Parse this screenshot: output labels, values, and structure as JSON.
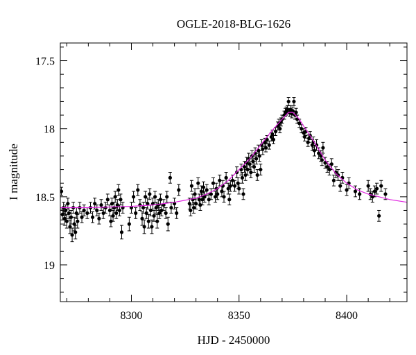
{
  "chart_data": {
    "type": "scatter",
    "title": "OGLE-2018-BLG-1626",
    "xlabel": "HJD - 2450000",
    "ylabel": "I magnitude",
    "xlim": [
      8267,
      8428
    ],
    "ylim": [
      19.27,
      17.37
    ],
    "y_inverted": true,
    "grid": false,
    "x_ticks": [
      {
        "value": 8300,
        "label": "8300"
      },
      {
        "value": 8350,
        "label": "8350"
      },
      {
        "value": 8400,
        "label": "8400"
      }
    ],
    "y_ticks": [
      {
        "value": 17.5,
        "label": "17.5"
      },
      {
        "value": 18,
        "label": "18"
      },
      {
        "value": 18.5,
        "label": "18.5"
      },
      {
        "value": 19,
        "label": "19"
      }
    ],
    "series": [
      {
        "kind": "points_with_errorbars",
        "color": "#000000",
        "points": [
          [
            8267.5,
            18.46,
            0.03
          ],
          [
            8268.0,
            18.63,
            0.04
          ],
          [
            8268.5,
            18.58,
            0.04
          ],
          [
            8269.0,
            18.66,
            0.05
          ],
          [
            8269.5,
            18.6,
            0.04
          ],
          [
            8270.0,
            18.68,
            0.05
          ],
          [
            8270.5,
            18.55,
            0.04
          ],
          [
            8271.0,
            18.62,
            0.04
          ],
          [
            8271.5,
            18.72,
            0.05
          ],
          [
            8272.0,
            18.65,
            0.05
          ],
          [
            8272.5,
            18.78,
            0.05
          ],
          [
            8273.0,
            18.58,
            0.04
          ],
          [
            8273.5,
            18.7,
            0.05
          ],
          [
            8274.0,
            18.76,
            0.05
          ],
          [
            8274.5,
            18.62,
            0.04
          ],
          [
            8275.0,
            18.68,
            0.05
          ],
          [
            8276.0,
            18.58,
            0.04
          ],
          [
            8277.0,
            18.65,
            0.04
          ],
          [
            8278.0,
            18.6,
            0.04
          ],
          [
            8279.5,
            18.62,
            0.04
          ],
          [
            8281.0,
            18.58,
            0.04
          ],
          [
            8282.0,
            18.65,
            0.04
          ],
          [
            8283.0,
            18.55,
            0.04
          ],
          [
            8284.0,
            18.6,
            0.04
          ],
          [
            8285.0,
            18.66,
            0.04
          ],
          [
            8286.0,
            18.56,
            0.04
          ],
          [
            8287.0,
            18.62,
            0.04
          ],
          [
            8288.0,
            18.58,
            0.04
          ],
          [
            8289.0,
            18.52,
            0.04
          ],
          [
            8290.0,
            18.6,
            0.04
          ],
          [
            8290.5,
            18.68,
            0.04
          ],
          [
            8291.0,
            18.55,
            0.04
          ],
          [
            8291.5,
            18.64,
            0.04
          ],
          [
            8292.0,
            18.58,
            0.04
          ],
          [
            8292.5,
            18.5,
            0.04
          ],
          [
            8293.0,
            18.62,
            0.04
          ],
          [
            8293.5,
            18.56,
            0.04
          ],
          [
            8294.0,
            18.45,
            0.04
          ],
          [
            8294.5,
            18.6,
            0.04
          ],
          [
            8295.0,
            18.52,
            0.04
          ],
          [
            8295.5,
            18.76,
            0.05
          ],
          [
            8296.0,
            18.58,
            0.04
          ],
          [
            8299.0,
            18.7,
            0.05
          ],
          [
            8300.0,
            18.58,
            0.04
          ],
          [
            8301.0,
            18.5,
            0.04
          ],
          [
            8302.0,
            18.62,
            0.04
          ],
          [
            8303.0,
            18.45,
            0.04
          ],
          [
            8304.0,
            18.56,
            0.04
          ],
          [
            8305.0,
            18.66,
            0.05
          ],
          [
            8305.5,
            18.58,
            0.04
          ],
          [
            8306.0,
            18.72,
            0.05
          ],
          [
            8306.5,
            18.5,
            0.04
          ],
          [
            8307.0,
            18.62,
            0.04
          ],
          [
            8307.5,
            18.55,
            0.04
          ],
          [
            8308.0,
            18.68,
            0.05
          ],
          [
            8308.5,
            18.48,
            0.04
          ],
          [
            8309.0,
            18.6,
            0.04
          ],
          [
            8309.5,
            18.72,
            0.05
          ],
          [
            8310.0,
            18.55,
            0.04
          ],
          [
            8310.5,
            18.64,
            0.04
          ],
          [
            8311.0,
            18.5,
            0.04
          ],
          [
            8311.5,
            18.58,
            0.04
          ],
          [
            8312.0,
            18.68,
            0.05
          ],
          [
            8312.5,
            18.56,
            0.04
          ],
          [
            8313.0,
            18.62,
            0.04
          ],
          [
            8313.5,
            18.52,
            0.04
          ],
          [
            8314.0,
            18.6,
            0.04
          ],
          [
            8315.0,
            18.56,
            0.04
          ],
          [
            8316.0,
            18.62,
            0.04
          ],
          [
            8316.5,
            18.5,
            0.04
          ],
          [
            8317.0,
            18.7,
            0.05
          ],
          [
            8318.0,
            18.36,
            0.04
          ],
          [
            8318.5,
            18.58,
            0.04
          ],
          [
            8320.0,
            18.55,
            0.04
          ],
          [
            8321.0,
            18.62,
            0.04
          ],
          [
            8322.0,
            18.45,
            0.04
          ],
          [
            8327.0,
            18.55,
            0.04
          ],
          [
            8327.5,
            18.6,
            0.04
          ],
          [
            8328.0,
            18.42,
            0.04
          ],
          [
            8328.5,
            18.52,
            0.04
          ],
          [
            8329.0,
            18.58,
            0.04
          ],
          [
            8329.5,
            18.48,
            0.04
          ],
          [
            8330.0,
            18.55,
            0.04
          ],
          [
            8331.0,
            18.4,
            0.04
          ],
          [
            8331.5,
            18.52,
            0.04
          ],
          [
            8332.0,
            18.56,
            0.04
          ],
          [
            8332.5,
            18.46,
            0.04
          ],
          [
            8333.0,
            18.52,
            0.04
          ],
          [
            8333.5,
            18.43,
            0.04
          ],
          [
            8334.0,
            18.5,
            0.04
          ],
          [
            8335.0,
            18.45,
            0.04
          ],
          [
            8336.0,
            18.52,
            0.04
          ],
          [
            8337.0,
            18.48,
            0.04
          ],
          [
            8338.0,
            18.4,
            0.04
          ],
          [
            8339.0,
            18.5,
            0.04
          ],
          [
            8339.5,
            18.44,
            0.04
          ],
          [
            8340.0,
            18.48,
            0.04
          ],
          [
            8341.0,
            18.38,
            0.04
          ],
          [
            8342.0,
            18.46,
            0.04
          ],
          [
            8342.5,
            18.42,
            0.04
          ],
          [
            8343.0,
            18.5,
            0.04
          ],
          [
            8344.0,
            18.36,
            0.04
          ],
          [
            8345.0,
            18.44,
            0.04
          ],
          [
            8345.5,
            18.52,
            0.04
          ],
          [
            8346.0,
            18.42,
            0.04
          ],
          [
            8347.0,
            18.38,
            0.04
          ],
          [
            8348.0,
            18.42,
            0.04
          ],
          [
            8349.0,
            18.32,
            0.04
          ],
          [
            8349.5,
            18.4,
            0.04
          ],
          [
            8350.0,
            18.44,
            0.04
          ],
          [
            8351.0,
            18.3,
            0.04
          ],
          [
            8351.5,
            18.36,
            0.04
          ],
          [
            8352.0,
            18.48,
            0.04
          ],
          [
            8352.5,
            18.28,
            0.04
          ],
          [
            8353.0,
            18.34,
            0.04
          ],
          [
            8353.5,
            18.25,
            0.04
          ],
          [
            8354.0,
            18.3,
            0.04
          ],
          [
            8354.5,
            18.22,
            0.04
          ],
          [
            8355.0,
            18.26,
            0.04
          ],
          [
            8355.5,
            18.32,
            0.04
          ],
          [
            8356.0,
            18.2,
            0.04
          ],
          [
            8356.5,
            18.24,
            0.04
          ],
          [
            8357.0,
            18.28,
            0.04
          ],
          [
            8357.5,
            18.18,
            0.04
          ],
          [
            8358.0,
            18.22,
            0.04
          ],
          [
            8358.5,
            18.34,
            0.04
          ],
          [
            8359.0,
            18.16,
            0.04
          ],
          [
            8359.5,
            18.2,
            0.04
          ],
          [
            8360.0,
            18.3,
            0.04
          ],
          [
            8360.5,
            18.12,
            0.04
          ],
          [
            8361.0,
            18.15,
            0.04
          ],
          [
            8362.0,
            18.1,
            0.03
          ],
          [
            8362.5,
            18.14,
            0.03
          ],
          [
            8363.0,
            18.08,
            0.03
          ],
          [
            8364.0,
            18.12,
            0.03
          ],
          [
            8365.0,
            18.06,
            0.03
          ],
          [
            8365.5,
            18.04,
            0.03
          ],
          [
            8366.0,
            18.08,
            0.03
          ],
          [
            8367.0,
            18.02,
            0.03
          ],
          [
            8368.0,
            17.98,
            0.03
          ],
          [
            8368.5,
            17.96,
            0.03
          ],
          [
            8369.0,
            18.0,
            0.03
          ],
          [
            8369.5,
            17.95,
            0.03
          ],
          [
            8370.0,
            17.93,
            0.03
          ],
          [
            8371.0,
            17.9,
            0.03
          ],
          [
            8371.5,
            17.88,
            0.03
          ],
          [
            8372.0,
            17.87,
            0.03
          ],
          [
            8372.5,
            17.86,
            0.03
          ],
          [
            8373.0,
            17.8,
            0.03
          ],
          [
            8373.5,
            17.88,
            0.03
          ],
          [
            8374.0,
            17.86,
            0.03
          ],
          [
            8374.5,
            17.89,
            0.03
          ],
          [
            8375.0,
            17.87,
            0.03
          ],
          [
            8375.5,
            17.8,
            0.03
          ],
          [
            8376.0,
            17.9,
            0.03
          ],
          [
            8376.5,
            17.88,
            0.03
          ],
          [
            8377.0,
            17.93,
            0.03
          ],
          [
            8378.0,
            17.96,
            0.03
          ],
          [
            8379.0,
            18.0,
            0.03
          ],
          [
            8380.0,
            18.03,
            0.03
          ],
          [
            8380.5,
            18.06,
            0.03
          ],
          [
            8381.0,
            18.02,
            0.03
          ],
          [
            8382.0,
            18.1,
            0.03
          ],
          [
            8382.5,
            18.07,
            0.03
          ],
          [
            8383.0,
            18.05,
            0.03
          ],
          [
            8384.0,
            18.12,
            0.04
          ],
          [
            8384.5,
            18.1,
            0.04
          ],
          [
            8385.0,
            18.16,
            0.04
          ],
          [
            8386.0,
            18.12,
            0.04
          ],
          [
            8387.0,
            18.18,
            0.04
          ],
          [
            8388.0,
            18.2,
            0.04
          ],
          [
            8388.5,
            18.23,
            0.04
          ],
          [
            8389.0,
            18.14,
            0.04
          ],
          [
            8390.0,
            18.25,
            0.04
          ],
          [
            8391.0,
            18.28,
            0.04
          ],
          [
            8392.0,
            18.3,
            0.04
          ],
          [
            8393.0,
            18.26,
            0.04
          ],
          [
            8394.0,
            18.38,
            0.04
          ],
          [
            8395.0,
            18.32,
            0.04
          ],
          [
            8396.0,
            18.34,
            0.04
          ],
          [
            8397.0,
            18.42,
            0.04
          ],
          [
            8398.0,
            18.36,
            0.04
          ],
          [
            8400.0,
            18.45,
            0.04
          ],
          [
            8401.0,
            18.4,
            0.04
          ],
          [
            8404.0,
            18.46,
            0.04
          ],
          [
            8406.0,
            18.48,
            0.04
          ],
          [
            8410.0,
            18.42,
            0.04
          ],
          [
            8411.0,
            18.48,
            0.04
          ],
          [
            8412.0,
            18.5,
            0.04
          ],
          [
            8413.0,
            18.46,
            0.04
          ],
          [
            8414.0,
            18.44,
            0.04
          ],
          [
            8415.0,
            18.64,
            0.04
          ],
          [
            8416.0,
            18.42,
            0.04
          ],
          [
            8418.0,
            18.48,
            0.04
          ]
        ]
      },
      {
        "kind": "model_curve",
        "color": "#e020e0",
        "points": [
          [
            8267,
            18.58
          ],
          [
            8280,
            18.58
          ],
          [
            8300,
            18.57
          ],
          [
            8310,
            18.56
          ],
          [
            8320,
            18.54
          ],
          [
            8330,
            18.51
          ],
          [
            8335,
            18.48
          ],
          [
            8340,
            18.44
          ],
          [
            8345,
            18.38
          ],
          [
            8350,
            18.3
          ],
          [
            8355,
            18.22
          ],
          [
            8360,
            18.12
          ],
          [
            8365,
            18.02
          ],
          [
            8370,
            17.93
          ],
          [
            8373,
            17.88
          ],
          [
            8375,
            17.88
          ],
          [
            8378,
            17.93
          ],
          [
            8380,
            17.98
          ],
          [
            8385,
            18.1
          ],
          [
            8390,
            18.23
          ],
          [
            8395,
            18.33
          ],
          [
            8400,
            18.4
          ],
          [
            8405,
            18.45
          ],
          [
            8410,
            18.48
          ],
          [
            8415,
            18.5
          ],
          [
            8420,
            18.52
          ],
          [
            8428,
            18.54
          ]
        ]
      }
    ]
  }
}
